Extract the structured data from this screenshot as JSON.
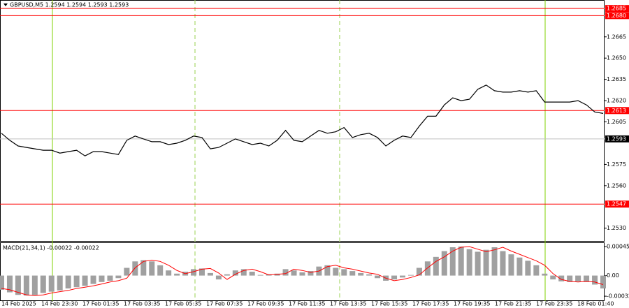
{
  "chart_data": [
    {
      "type": "line",
      "title": "GBPUSD,M5  1.2594 1.2594 1.2593 1.2593",
      "color": "#000000",
      "values": [
        1.2597,
        1.2592,
        1.2588,
        1.2587,
        1.2586,
        1.2585,
        1.2585,
        1.2583,
        1.2584,
        1.2585,
        1.2581,
        1.2584,
        1.2584,
        1.2583,
        1.2582,
        1.2592,
        1.2595,
        1.2593,
        1.2591,
        1.2591,
        1.2589,
        1.259,
        1.2592,
        1.2595,
        1.2594,
        1.2586,
        1.2587,
        1.259,
        1.2593,
        1.2591,
        1.2589,
        1.259,
        1.2588,
        1.2592,
        1.2599,
        1.2592,
        1.2591,
        1.2595,
        1.2599,
        1.2597,
        1.2598,
        1.2601,
        1.2594,
        1.2596,
        1.2597,
        1.2594,
        1.2588,
        1.2592,
        1.2595,
        1.2594,
        1.2602,
        1.2609,
        1.2609,
        1.2617,
        1.2622,
        1.262,
        1.2621,
        1.2628,
        1.2631,
        1.2627,
        1.2626,
        1.2626,
        1.2627,
        1.2626,
        1.2627,
        1.2619,
        1.2619,
        1.2619,
        1.2619,
        1.262,
        1.2617,
        1.2612,
        1.2611
      ],
      "x_labels": [
        "14 Feb 2025",
        "14 Feb 23:30",
        "17 Feb 01:35",
        "17 Feb 03:35",
        "17 Feb 05:35",
        "17 Feb 07:35",
        "17 Feb 09:35",
        "17 Feb 11:35",
        "17 Feb 13:35",
        "17 Feb 15:35",
        "17 Feb 17:35",
        "17 Feb 19:35",
        "17 Feb 21:35",
        "17 Feb 23:35",
        "18 Feb 01:40"
      ],
      "ylim": [
        1.2521,
        1.2691
      ],
      "yticks": [
        1.2665,
        {
          "value": 1.265,
          "label": "1.2650"
        },
        1.2635,
        {
          "value": 1.262,
          "label": "1.2620"
        },
        1.2605,
        1.2575,
        {
          "value": 1.256,
          "label": "1.2560"
        },
        {
          "value": 1.253,
          "label": "1.2530"
        }
      ],
      "levels": [
        1.2685,
        {
          "value": 1.268,
          "label": "1.2680"
        },
        1.2613,
        1.2547
      ],
      "level_color": "#ff0000",
      "current_price": 1.2593
    },
    {
      "type": "bar",
      "title": "MACD(21,34,1) -0.00022 -0.00022",
      "color": "#a0a0a0",
      "signal_color": "#ff0000",
      "values": [
        -0.00022,
        -0.00026,
        -0.0003,
        -0.00031,
        -0.0003,
        -0.00027,
        -0.00025,
        -0.00023,
        -0.0002,
        -0.00018,
        -0.00016,
        -0.00013,
        -0.0001,
        -8e-05,
        -4e-05,
        0.00012,
        0.00022,
        0.00024,
        0.00022,
        0.00016,
        8e-05,
        3e-05,
        6e-05,
        0.0001,
        0.00011,
        4e-05,
        -6e-05,
        2e-05,
        8e-05,
        0.0001,
        6e-05,
        1e-05,
        2e-05,
        3e-05,
        0.0001,
        8e-05,
        5e-05,
        7e-05,
        0.00014,
        0.00016,
        0.00012,
        0.0001,
        7e-05,
        4e-05,
        2e-05,
        -4e-05,
        -8e-05,
        -6e-05,
        -3e-05,
        1e-05,
        0.00012,
        0.00022,
        0.00029,
        0.00038,
        0.00044,
        0.00045,
        0.00041,
        0.00037,
        0.0004,
        0.00044,
        0.00038,
        0.00033,
        0.00028,
        0.00023,
        0.00016,
        3e-05,
        -6e-05,
        -9e-05,
        -0.0001,
        -9e-05,
        -0.0001,
        -0.00014,
        -0.0002
      ],
      "signal": [
        -0.0002,
        -0.00022,
        -0.00026,
        -0.0003,
        -0.00031,
        -0.0003,
        -0.00027,
        -0.00025,
        -0.00023,
        -0.0002,
        -0.00018,
        -0.00016,
        -0.00013,
        -0.0001,
        -8e-05,
        -4e-05,
        0.00012,
        0.00022,
        0.00024,
        0.00022,
        0.00016,
        8e-05,
        3e-05,
        6e-05,
        0.0001,
        0.00011,
        4e-05,
        -6e-05,
        2e-05,
        8e-05,
        0.0001,
        6e-05,
        1e-05,
        2e-05,
        3e-05,
        0.0001,
        8e-05,
        5e-05,
        7e-05,
        0.00014,
        0.00016,
        0.00012,
        0.0001,
        7e-05,
        4e-05,
        2e-05,
        -4e-05,
        -8e-05,
        -6e-05,
        -3e-05,
        1e-05,
        0.00012,
        0.00022,
        0.00029,
        0.00038,
        0.00044,
        0.00045,
        0.00041,
        0.00037,
        0.0004,
        0.00044,
        0.00038,
        0.00033,
        0.00028,
        0.00023,
        0.00016,
        3e-05,
        -6e-05,
        -9e-05,
        -0.0001,
        -9e-05,
        -0.0001,
        -0.00014
      ],
      "ylim": [
        -0.000395,
        0.000505
      ],
      "yticks": [
        0.00045,
        {
          "value": 0,
          "label": "0.00"
        },
        -0.00032
      ]
    }
  ]
}
